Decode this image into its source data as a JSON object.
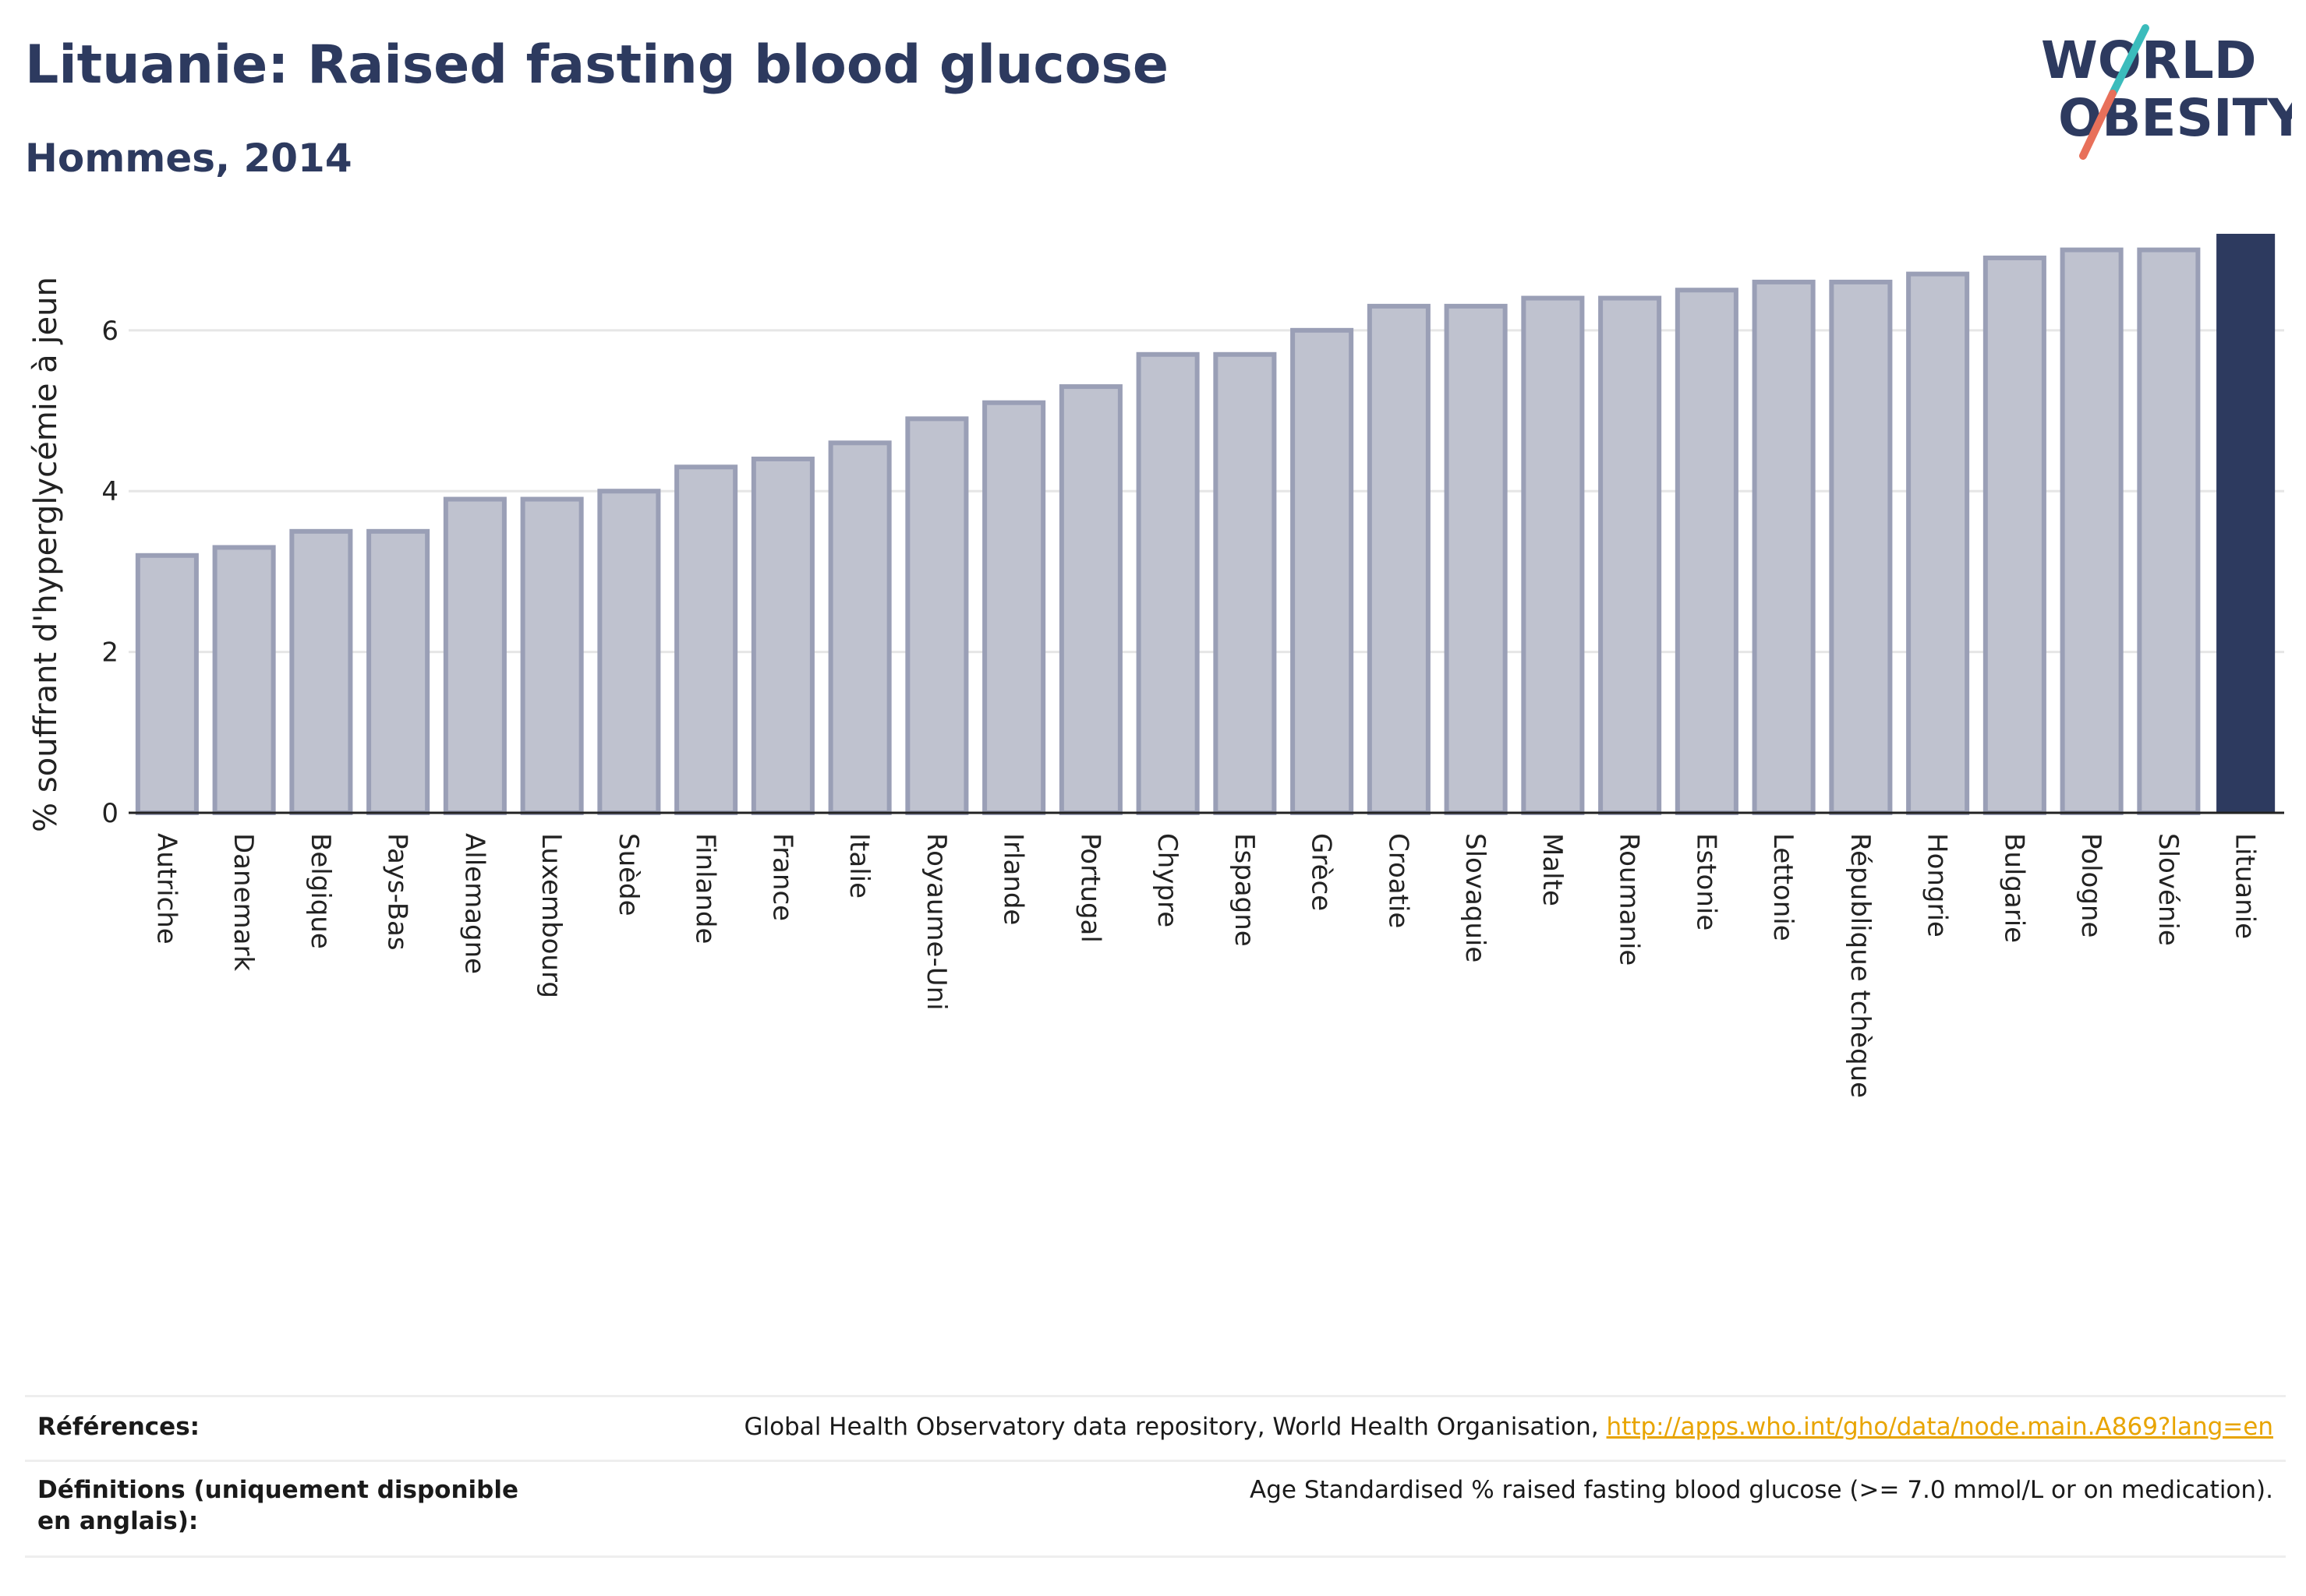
{
  "header": {
    "title": "Lituanie: Raised fasting blood glucose",
    "subtitle": "Hommes, 2014"
  },
  "logo": {
    "line1": "WORLD",
    "line2": "OBESITY",
    "colors": {
      "text": "#2d3a5f",
      "slash_teal": "#3bbcbc",
      "slash_coral": "#e8705a"
    }
  },
  "colors": {
    "bar_default_fill": "#bfc2cf",
    "bar_default_stroke": "#9a9fb6",
    "bar_highlight": "#2d3a5f",
    "grid": "#e6e6e6",
    "axis": "#222222",
    "link": "#e8a400"
  },
  "chart_data": {
    "type": "bar",
    "title": "",
    "xlabel": "",
    "ylabel": "% souffrant d'hyperglycémie à jeun",
    "ylim": [
      0,
      7.2
    ],
    "yticks": [
      0,
      2,
      4,
      6
    ],
    "grid": true,
    "highlight": "Lituanie",
    "categories": [
      "Autriche",
      "Danemark",
      "Belgique",
      "Pays-Bas",
      "Allemagne",
      "Luxembourg",
      "Suède",
      "Finlande",
      "France",
      "Italie",
      "Royaume-Uni",
      "Irlande",
      "Portugal",
      "Chypre",
      "Espagne",
      "Grèce",
      "Croatie",
      "Slovaquie",
      "Malte",
      "Roumanie",
      "Estonie",
      "Lettonie",
      "République tchèque",
      "Hongrie",
      "Bulgarie",
      "Pologne",
      "Slovénie",
      "Lituanie"
    ],
    "values": [
      3.2,
      3.3,
      3.5,
      3.5,
      3.9,
      3.9,
      4.0,
      4.3,
      4.4,
      4.6,
      4.9,
      5.1,
      5.3,
      5.7,
      5.7,
      6.0,
      6.3,
      6.3,
      6.4,
      6.4,
      6.5,
      6.6,
      6.6,
      6.7,
      6.9,
      7.0,
      7.0,
      7.2
    ]
  },
  "footer": {
    "references_label": "Références:",
    "references_text": "Global Health Observatory data repository, World Health Organisation, ",
    "references_link": "http://apps.who.int/gho/data/node.main.A869?lang=en",
    "definitions_label": "Définitions (uniquement disponible en anglais):",
    "definitions_text": "Age Standardised % raised fasting blood glucose (>= 7.0 mmol/L or on medication)."
  }
}
